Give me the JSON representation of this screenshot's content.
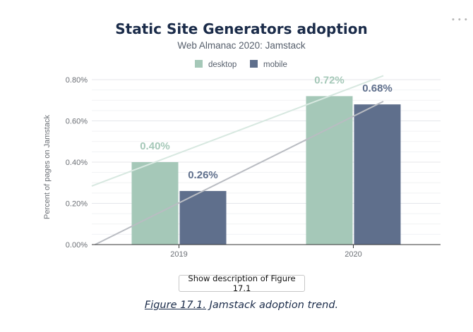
{
  "chart_data": {
    "type": "bar",
    "title": "Static Site Generators adoption",
    "subtitle": "Web Almanac 2020: Jamstack",
    "ylabel": "Percent of pages on Jamstack",
    "xlabel": "",
    "categories": [
      "2019",
      "2020"
    ],
    "series": [
      {
        "name": "desktop",
        "values": [
          0.4,
          0.72
        ],
        "labels": [
          "0.40%",
          "0.72%"
        ],
        "color": "#a5c8b8"
      },
      {
        "name": "mobile",
        "values": [
          0.26,
          0.68
        ],
        "labels": [
          "0.26%",
          "0.68%"
        ],
        "color": "#5f6f8c"
      }
    ],
    "ylim": [
      0,
      0.8
    ],
    "yticks": [
      "0.00%",
      "0.20%",
      "0.40%",
      "0.60%",
      "0.80%"
    ],
    "ytick_values": [
      0,
      0.2,
      0.4,
      0.6,
      0.8
    ],
    "trendlines": true,
    "grid": true,
    "legend": "top-center"
  },
  "more_menu": "• • •",
  "description_button": "Show description of Figure 17.1",
  "caption": {
    "figure_label": "Figure 17.1.",
    "text": " Jamstack adoption trend."
  }
}
